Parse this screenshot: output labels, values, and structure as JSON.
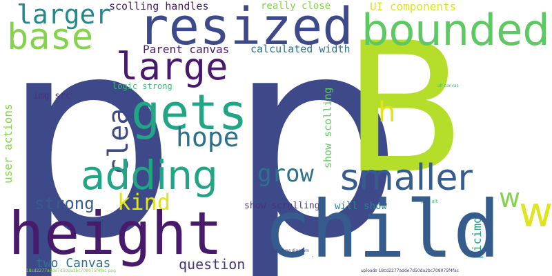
{
  "colors": {
    "background": "#ffffff",
    "dark_purple": "#46327e",
    "indigo": "#3e4989",
    "deep_purple": "#481a6c",
    "blue": "#365c8d",
    "teal_blue": "#2c728e",
    "teal": "#1f8a8c",
    "green_teal": "#21a585",
    "green": "#3bbb75",
    "light_green": "#5ec962",
    "lime": "#84d44b",
    "yellow_green": "#b5de2b",
    "yellow": "#e0e41a"
  },
  "words": {
    "p1": "p",
    "p2": "p",
    "B": "B",
    "resized": "resized",
    "bounded": "bounded",
    "base": "base",
    "larger": "larger",
    "scolling_handles": "scolling handles",
    "really_close": "really close",
    "ui_components": "UI components",
    "parent_canvas": "Parent canvas",
    "calculated_width": "calculated width",
    "large": "large",
    "gets": "gets",
    "width": "width",
    "h": "h",
    "clear": "clear",
    "hope": "hope",
    "adding": "adding",
    "grow": "grow",
    "smaller": "smaller",
    "user_actions": "user actions",
    "show_scolling": "show scolling",
    "logic_strong": "logic strong",
    "img_src": "img src",
    "alt_canvas": "alt canvas",
    "strong": "strong",
    "kind": "kind",
    "w": "w",
    "height": "height",
    "child": "child",
    "show_scrolling": "show scrolling",
    "will_show": "will show",
    "png_alt": "png alt",
    "picimg": "picimg",
    "canvas_diagram": "canvas diagram",
    "two_canvas": "two Canvas",
    "question": "question",
    "uploads": "uploads 18cd2277adde7d50da2bc708075f4fac",
    "long_id": "18cd2277adde7d50da2bc708075f4fac png",
    "comma": ","
  }
}
